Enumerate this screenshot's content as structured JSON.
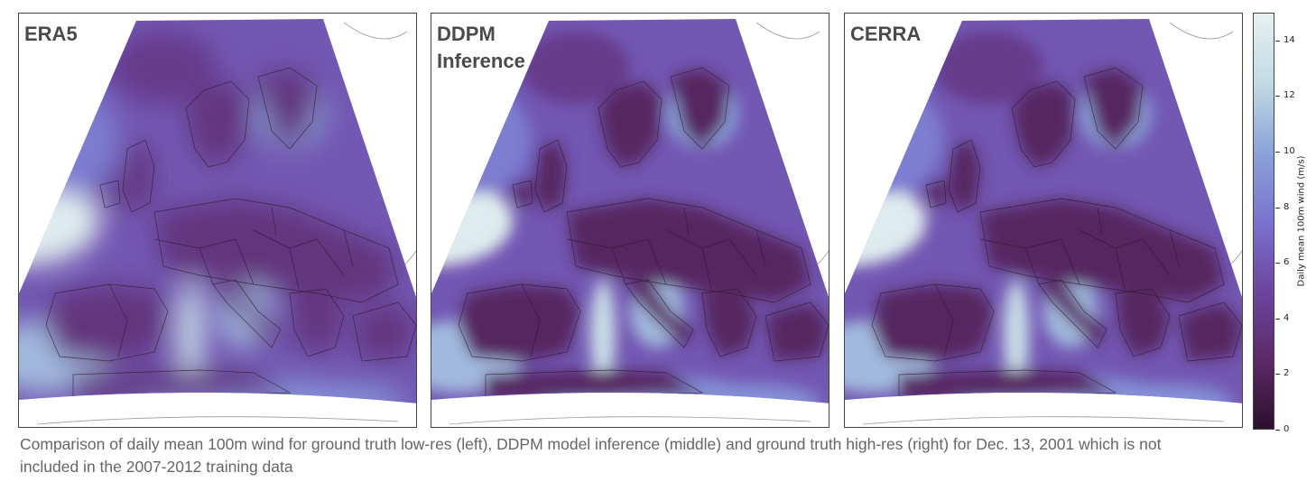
{
  "chart_data": {
    "type": "heatmap",
    "panels": [
      {
        "id": "era5",
        "title": "ERA5",
        "variant": "smooth"
      },
      {
        "id": "ddpm",
        "title": "DDPM\nInference",
        "variant": "detailed"
      },
      {
        "id": "cerra",
        "title": "CERRA",
        "variant": "detailed"
      }
    ],
    "colorbar": {
      "label": "Daily mean 100m wind (m/s)",
      "range": [
        0,
        15
      ],
      "ticks": [
        0,
        2,
        4,
        6,
        8,
        10,
        12,
        14
      ],
      "colormap": [
        "#2d0f2e",
        "#5c2a68",
        "#6d45a0",
        "#7a73cf",
        "#8ba3d9",
        "#c2dbe4",
        "#e6f0f1"
      ]
    }
  },
  "caption": "Comparison of daily mean 100m wind for ground truth low-res (left), DDPM model inference (middle) and ground truth high-res (right) for Dec. 13, 2001 which is not included in the 2007-2012 training data"
}
